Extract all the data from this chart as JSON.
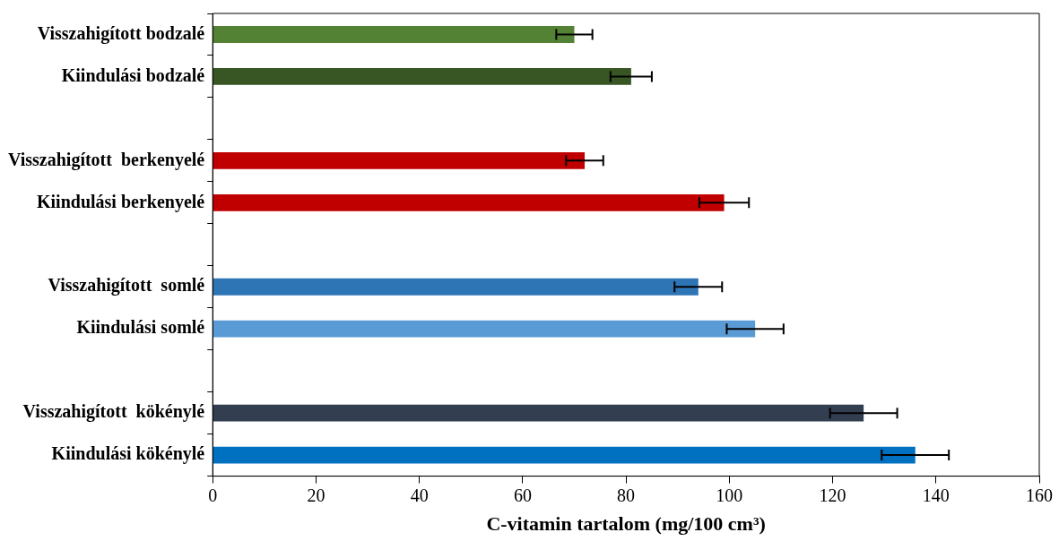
{
  "chart_data": {
    "type": "bar",
    "orientation": "horizontal",
    "xlabel": "C-vitamin tartalom (mg/100 cm³)",
    "categories": [
      "Visszahigított bodzalé",
      "Kiindulási bodzalé",
      null,
      "Visszahigított  berkenyelé",
      "Kiindulási berkenyelé",
      null,
      "Visszahigított  somlé",
      "Kiindulási somlé",
      null,
      "Visszahigított  kökénylé",
      "Kiindulási kökénylé"
    ],
    "values": [
      70,
      81,
      null,
      72,
      99,
      null,
      94,
      105,
      null,
      126,
      136
    ],
    "colors": [
      "#548235",
      "#375623",
      "#ffffff",
      "#c00000",
      "#c00000",
      "#ffffff",
      "#2e75b6",
      "#5b9bd5",
      "#ffffff",
      "#333f50",
      "#0070c0"
    ],
    "errors": [
      3.5,
      4,
      null,
      3.6,
      4.8,
      null,
      4.6,
      5.5,
      null,
      6.5,
      6.5
    ],
    "xlim": [
      0,
      160
    ],
    "xticks": [
      0,
      20,
      40,
      60,
      80,
      100,
      120,
      140,
      160
    ],
    "grid": false,
    "legend": false
  }
}
